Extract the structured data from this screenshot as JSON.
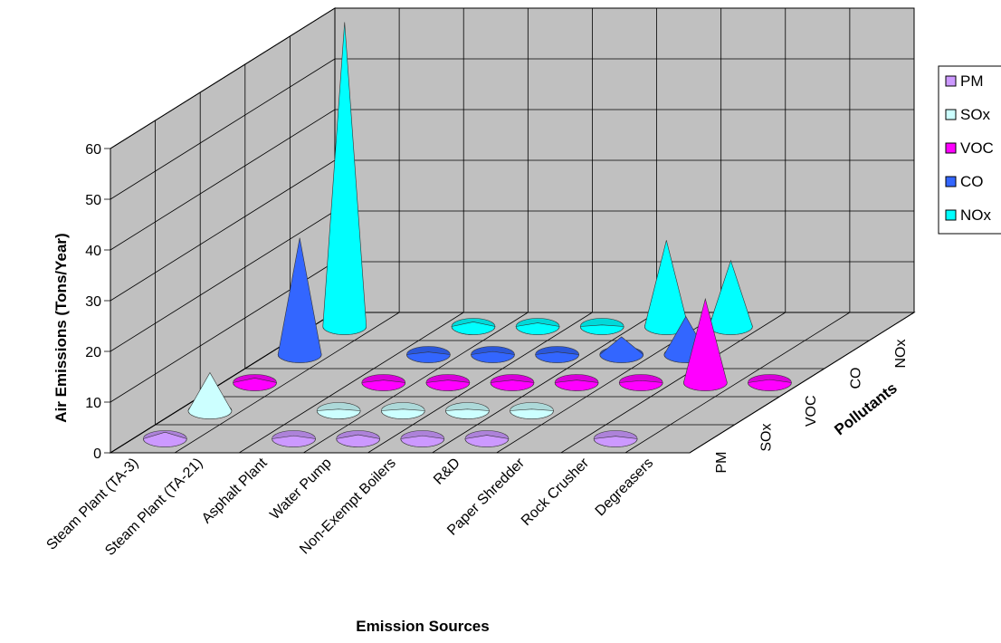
{
  "chart_data": {
    "type": "3d-cone",
    "y_axis": {
      "label": "Air Emissions (Tons/Year)",
      "ticks": [
        "0",
        "10",
        "20",
        "30",
        "40",
        "50",
        "60"
      ],
      "range": [
        0,
        60
      ]
    },
    "x_axis": {
      "label": "Emission Sources",
      "categories": [
        "Steam Plant (TA-3)",
        "Steam Plant (TA-21)",
        "Asphalt Plant",
        "Water Pump",
        "Non-Exempt Boilers",
        "R&D",
        "Paper Shredder",
        "Rock Crusher",
        "Degreasers"
      ]
    },
    "depth_axis": {
      "label": "Pollutants",
      "categories": [
        "PM",
        "SOx",
        "VOC",
        "CO",
        "NOx"
      ]
    },
    "series": [
      {
        "name": "PM",
        "color": "#CC99FF",
        "values": [
          1.3,
          0,
          0.6,
          0.8,
          0.6,
          0.7,
          0,
          0.5,
          0
        ]
      },
      {
        "name": "SOx",
        "color": "#CCFFFF",
        "values": [
          7.5,
          0,
          0.3,
          0.3,
          0.3,
          0.3,
          0,
          0,
          0
        ]
      },
      {
        "name": "VOC",
        "color": "#FF00FF",
        "values": [
          0.9,
          0,
          0.5,
          0.5,
          0.5,
          0.5,
          0.4,
          16.5,
          0.6
        ]
      },
      {
        "name": "CO",
        "color": "#3366FF",
        "values": [
          23,
          0,
          0.5,
          0.6,
          0.5,
          3.5,
          7.5,
          0,
          0
        ]
      },
      {
        "name": "NOx",
        "color": "#00FFFF",
        "values": [
          60,
          0,
          0.9,
          0.7,
          0.3,
          17,
          13,
          0,
          0
        ]
      }
    ],
    "legend_position": "right",
    "grid": true
  }
}
